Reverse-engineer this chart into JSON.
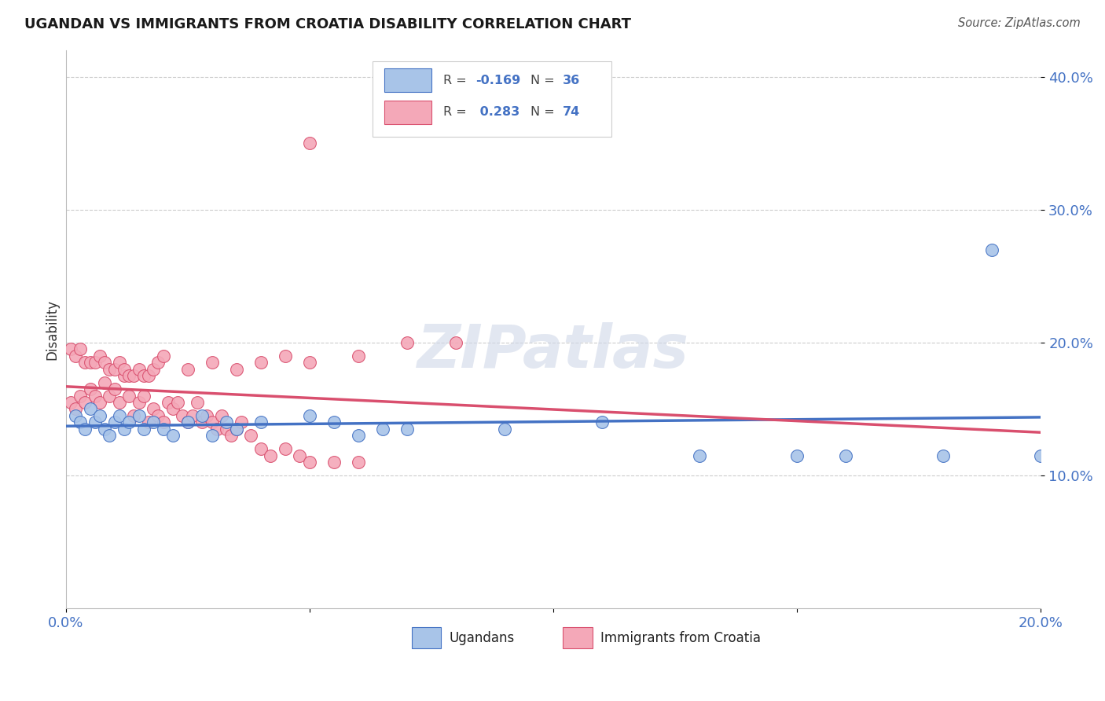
{
  "title": "UGANDAN VS IMMIGRANTS FROM CROATIA DISABILITY CORRELATION CHART",
  "source": "Source: ZipAtlas.com",
  "ylabel_label": "Disability",
  "xlim": [
    0.0,
    0.2
  ],
  "ylim": [
    0.0,
    0.42
  ],
  "xticks": [
    0.0,
    0.05,
    0.1,
    0.15,
    0.2
  ],
  "xtick_labels": [
    "0.0%",
    "",
    "",
    "",
    "20.0%"
  ],
  "ytick_positions": [
    0.1,
    0.2,
    0.3,
    0.4
  ],
  "ytick_labels": [
    "10.0%",
    "20.0%",
    "30.0%",
    "40.0%"
  ],
  "r_ugandan": -0.169,
  "n_ugandan": 36,
  "r_croatia": 0.283,
  "n_croatia": 74,
  "ugandan_color": "#a8c4e8",
  "croatia_color": "#f4a8b8",
  "line_ugandan_color": "#4472c4",
  "line_croatia_color": "#d94f6e",
  "watermark": "ZIPatlas",
  "ugandan_points_x": [
    0.002,
    0.003,
    0.004,
    0.005,
    0.006,
    0.007,
    0.008,
    0.009,
    0.01,
    0.011,
    0.012,
    0.013,
    0.015,
    0.016,
    0.018,
    0.02,
    0.022,
    0.025,
    0.028,
    0.03,
    0.033,
    0.035,
    0.04,
    0.05,
    0.055,
    0.06,
    0.065,
    0.07,
    0.09,
    0.11,
    0.13,
    0.15,
    0.16,
    0.18,
    0.19,
    0.2
  ],
  "ugandan_points_y": [
    0.145,
    0.14,
    0.135,
    0.15,
    0.14,
    0.145,
    0.135,
    0.13,
    0.14,
    0.145,
    0.135,
    0.14,
    0.145,
    0.135,
    0.14,
    0.135,
    0.13,
    0.14,
    0.145,
    0.13,
    0.14,
    0.135,
    0.14,
    0.145,
    0.14,
    0.13,
    0.135,
    0.135,
    0.135,
    0.14,
    0.115,
    0.115,
    0.115,
    0.115,
    0.27,
    0.115
  ],
  "croatia_points_x": [
    0.001,
    0.002,
    0.003,
    0.004,
    0.005,
    0.006,
    0.007,
    0.008,
    0.009,
    0.01,
    0.011,
    0.012,
    0.013,
    0.014,
    0.015,
    0.016,
    0.017,
    0.018,
    0.019,
    0.02,
    0.021,
    0.022,
    0.023,
    0.024,
    0.025,
    0.026,
    0.027,
    0.028,
    0.029,
    0.03,
    0.031,
    0.032,
    0.033,
    0.034,
    0.035,
    0.036,
    0.038,
    0.04,
    0.042,
    0.045,
    0.048,
    0.05,
    0.055,
    0.06,
    0.001,
    0.002,
    0.003,
    0.004,
    0.005,
    0.006,
    0.007,
    0.008,
    0.009,
    0.01,
    0.011,
    0.012,
    0.013,
    0.014,
    0.015,
    0.016,
    0.017,
    0.018,
    0.019,
    0.02,
    0.025,
    0.03,
    0.035,
    0.04,
    0.045,
    0.05,
    0.06,
    0.07,
    0.08,
    0.05
  ],
  "croatia_points_y": [
    0.155,
    0.15,
    0.16,
    0.155,
    0.165,
    0.16,
    0.155,
    0.17,
    0.16,
    0.165,
    0.155,
    0.175,
    0.16,
    0.145,
    0.155,
    0.16,
    0.14,
    0.15,
    0.145,
    0.14,
    0.155,
    0.15,
    0.155,
    0.145,
    0.14,
    0.145,
    0.155,
    0.14,
    0.145,
    0.14,
    0.135,
    0.145,
    0.135,
    0.13,
    0.135,
    0.14,
    0.13,
    0.12,
    0.115,
    0.12,
    0.115,
    0.11,
    0.11,
    0.11,
    0.195,
    0.19,
    0.195,
    0.185,
    0.185,
    0.185,
    0.19,
    0.185,
    0.18,
    0.18,
    0.185,
    0.18,
    0.175,
    0.175,
    0.18,
    0.175,
    0.175,
    0.18,
    0.185,
    0.19,
    0.18,
    0.185,
    0.18,
    0.185,
    0.19,
    0.185,
    0.19,
    0.2,
    0.2,
    0.35
  ]
}
